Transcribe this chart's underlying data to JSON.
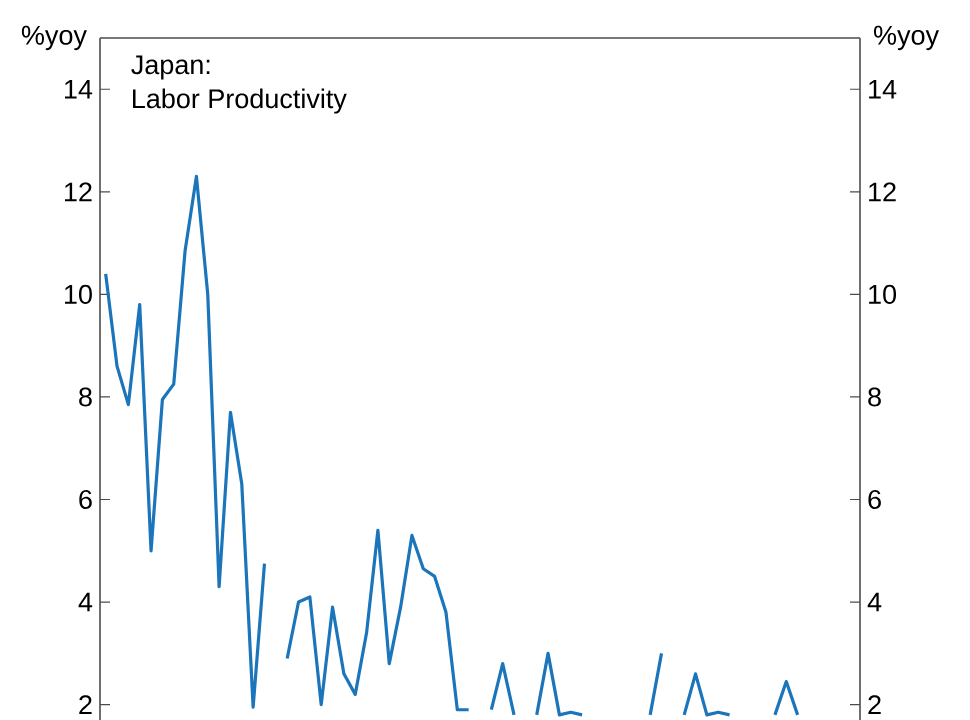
{
  "chart_data": {
    "type": "line",
    "title": "Japan:",
    "subtitle": "Labor Productivity",
    "ylabel": "%yoy",
    "y2label": "%yoy",
    "categories": [
      null,
      null,
      null,
      null,
      null,
      null,
      null,
      null,
      null,
      null,
      null,
      null,
      null,
      null,
      null,
      null,
      null,
      null,
      null,
      null,
      null,
      null,
      null,
      null,
      null,
      null,
      null,
      null,
      null,
      null,
      null,
      null,
      null,
      null,
      null,
      null,
      null,
      null,
      null,
      null,
      null,
      null,
      null,
      null,
      null,
      null,
      null,
      null,
      null,
      null,
      null,
      null,
      null,
      null,
      null,
      null,
      null,
      null,
      null,
      null,
      null,
      null,
      null,
      null,
      null,
      null,
      null
    ],
    "series": [
      {
        "color": "#1b75bb",
        "values": [
          10.4,
          8.6,
          7.85,
          9.8,
          5.0,
          7.95,
          8.25,
          10.85,
          12.3,
          10.0,
          4.3,
          7.7,
          6.3,
          1.95,
          4.75,
          null,
          2.9,
          4.0,
          4.1,
          2.0,
          3.9,
          2.6,
          2.2,
          3.4,
          5.4,
          2.8,
          3.9,
          5.3,
          4.65,
          4.5,
          3.8,
          1.9,
          1.9,
          null,
          1.9,
          2.8,
          1.8,
          null,
          1.8,
          3.0,
          1.8,
          1.85,
          1.8,
          null,
          null,
          null,
          null,
          null,
          1.8,
          3.0,
          null,
          1.8,
          2.6,
          1.8,
          1.85,
          1.8,
          null,
          null,
          null,
          1.8,
          2.45,
          1.8,
          null,
          null,
          null,
          null,
          null
        ]
      }
    ],
    "ylim": [
      1.7,
      15
    ],
    "yticks": [
      2,
      4,
      6,
      8,
      10,
      12,
      14
    ],
    "y2lim": [
      1.7,
      15
    ],
    "y2ticks": [
      2,
      4,
      6,
      8,
      10,
      12,
      14
    ],
    "tick_labels": "y"
  }
}
